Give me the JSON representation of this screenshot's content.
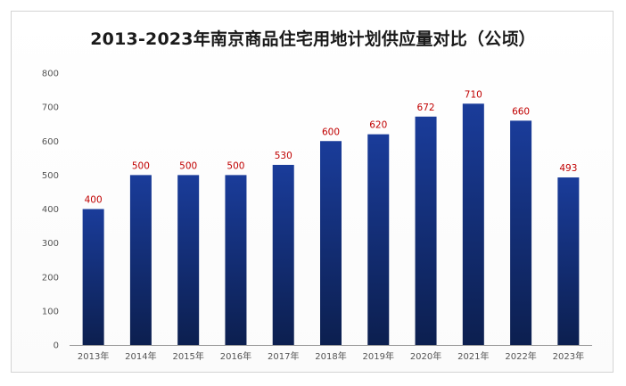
{
  "chart_data": {
    "type": "bar",
    "title": "2013-2023年南京商品住宅用地计划供应量对比（公顷）",
    "categories": [
      "2013年",
      "2014年",
      "2015年",
      "2016年",
      "2017年",
      "2018年",
      "2019年",
      "2020年",
      "2021年",
      "2022年",
      "2023年"
    ],
    "values": [
      400,
      500,
      500,
      500,
      530,
      600,
      620,
      672,
      710,
      660,
      493
    ],
    "data_labels": [
      "400",
      "500",
      "500",
      "500",
      "530",
      "600",
      "620",
      "672",
      "710",
      "660",
      "493"
    ],
    "ylim": [
      0,
      800
    ],
    "yticks": [
      0,
      100,
      200,
      300,
      400,
      500,
      600,
      700,
      800
    ],
    "ytick_labels": [
      "0",
      "100",
      "200",
      "300",
      "400",
      "500",
      "600",
      "700",
      "800"
    ],
    "xlabel": "",
    "ylabel": "",
    "grid": false,
    "legend": "none",
    "colors": {
      "bar_top": "#1a3c9a",
      "bar_bottom": "#0c1f4f",
      "data_label": "#c00000",
      "axis": "#9a9a9a"
    }
  }
}
